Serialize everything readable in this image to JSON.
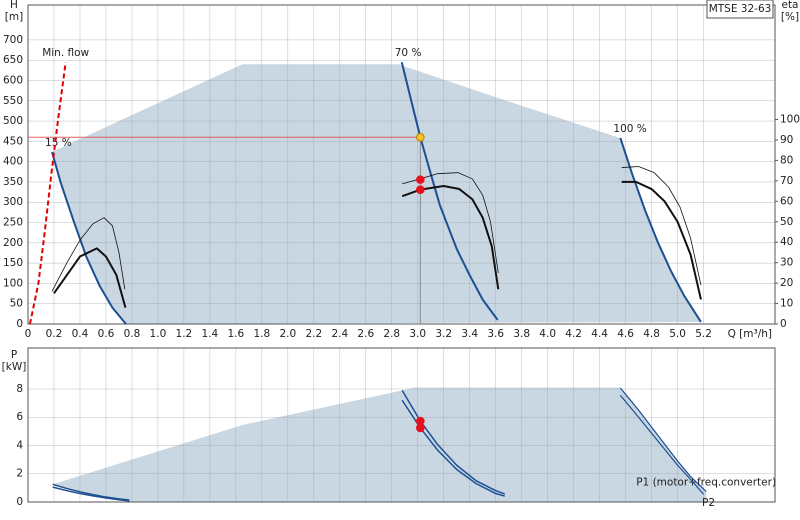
{
  "chart_data": [
    {
      "type": "line",
      "label": "MTSE 32-63",
      "xlabel": "Q [m³/h]",
      "ylabel": [
        "H",
        "[m]"
      ],
      "y2label": [
        "eta",
        "[%]"
      ],
      "xlim": [
        0,
        5.75
      ],
      "xticks": [
        0,
        0.2,
        0.4,
        0.6,
        0.8,
        {
          "value": 1,
          "label": "1.0"
        },
        1.2,
        1.4,
        1.6,
        1.8,
        {
          "value": 2,
          "label": "2.0"
        },
        2.2,
        2.4,
        2.6,
        2.8,
        {
          "value": 3,
          "label": "3.0"
        },
        3.2,
        3.4,
        3.6,
        3.8,
        {
          "value": 4,
          "label": "4.0"
        },
        4.2,
        4.4,
        4.6,
        4.8,
        {
          "value": 5,
          "label": "5.0"
        },
        5.2
      ],
      "ylim": [
        0,
        786
      ],
      "yticks": [
        0,
        50,
        100,
        150,
        200,
        250,
        300,
        350,
        400,
        450,
        500,
        550,
        600,
        650,
        700
      ],
      "y2lim": [
        0,
        156
      ],
      "y2ticks": [
        0,
        10,
        20,
        30,
        40,
        50,
        60,
        70,
        80,
        90,
        100
      ],
      "grid": true,
      "area": {
        "color": "#c9d7e3",
        "x": [
          0.185,
          1.65,
          2.85,
          3.59,
          4.56,
          4.65,
          4.75,
          4.85,
          4.95,
          5.05,
          5.18,
          0.754,
          0.65,
          0.55,
          0.45,
          0.35,
          0.25
        ],
        "values": [
          424,
          640,
          640,
          560,
          458,
          370,
          280,
          200,
          130,
          70,
          5,
          0,
          40,
          95,
          165,
          255,
          350
        ]
      },
      "series": [
        {
          "label": "15 %",
          "label_pos": "start",
          "label_color": "#222",
          "color": "#1d4f91",
          "width": 2,
          "x": [
            0.185,
            0.25,
            0.35,
            0.45,
            0.55,
            0.65,
            0.754
          ],
          "values": [
            424,
            350,
            255,
            165,
            95,
            40,
            0
          ]
        },
        {
          "label": "70 %",
          "label_pos": "start",
          "label_color": "#222",
          "color": "#1d4f91",
          "width": 2,
          "x": [
            2.877,
            2.95,
            3.02,
            3.1,
            3.17,
            3.3,
            3.4,
            3.5,
            3.615
          ],
          "values": [
            645,
            550,
            460,
            370,
            293,
            185,
            120,
            60,
            10
          ]
        },
        {
          "label": "100 %",
          "label_pos": "start",
          "label_color": "#222",
          "color": "#1d4f91",
          "width": 2,
          "x": [
            4.56,
            4.65,
            4.75,
            4.85,
            4.95,
            5.05,
            5.18
          ],
          "values": [
            458,
            370,
            280,
            200,
            130,
            70,
            5
          ]
        },
        {
          "label": "Min. flow",
          "label_pos": "end",
          "label_color": "#e00000",
          "color": "#e00000",
          "width": 2,
          "dash": true,
          "x": [
            0.015,
            0.08,
            0.13,
            0.18,
            0.23,
            0.29
          ],
          "values": [
            0,
            100,
            230,
            370,
            500,
            645
          ]
        },
        {
          "axis": "y2",
          "color": "#111",
          "width": 0.8,
          "x": [
            0.185,
            0.3,
            0.4,
            0.5,
            0.585,
            0.65,
            0.7,
            0.745
          ],
          "values": [
            16,
            30,
            41,
            49,
            52,
            48,
            35,
            17
          ]
        },
        {
          "axis": "y2",
          "color": "#111",
          "width": 2,
          "x": [
            0.2,
            0.3,
            0.4,
            0.53,
            0.6,
            0.68,
            0.75
          ],
          "values": [
            15,
            24,
            33,
            37,
            33,
            24,
            8
          ]
        },
        {
          "axis": "y2",
          "color": "#111",
          "width": 0.8,
          "x": [
            2.88,
            3.02,
            3.15,
            3.31,
            3.42,
            3.5,
            3.56,
            3.62
          ],
          "values": [
            68.5,
            71,
            73.5,
            74,
            71,
            63,
            50,
            25
          ]
        },
        {
          "axis": "y2",
          "color": "#111",
          "width": 2,
          "x": [
            2.88,
            3.02,
            3.2,
            3.32,
            3.42,
            3.5,
            3.57,
            3.62
          ],
          "values": [
            62.5,
            65.7,
            67.5,
            66,
            61,
            52,
            38,
            17
          ]
        },
        {
          "axis": "y2",
          "color": "#111",
          "width": 0.8,
          "x": [
            4.57,
            4.7,
            4.82,
            4.93,
            5.02,
            5.1,
            5.18
          ],
          "values": [
            76.5,
            77,
            74,
            67,
            57,
            42,
            19
          ]
        },
        {
          "axis": "y2",
          "color": "#111",
          "width": 2,
          "x": [
            4.57,
            4.68,
            4.8,
            4.9,
            5.0,
            5.1,
            5.18
          ],
          "values": [
            69.5,
            69.5,
            66,
            60,
            50,
            34,
            12
          ]
        }
      ],
      "points": [
        {
          "x": 3.02,
          "value": 460,
          "color": "#f5c518",
          "guides": true
        },
        {
          "x": 3.02,
          "value": 70.6,
          "axis": "y2",
          "color": "#e8101a"
        },
        {
          "x": 3.02,
          "value": 65.7,
          "axis": "y2",
          "color": "#e8101a"
        }
      ]
    },
    {
      "type": "line",
      "ylabel": [
        "P",
        "[kW]"
      ],
      "xlim": [
        0,
        5.75
      ],
      "xticks": [
        0,
        0.2,
        0.4,
        0.6,
        0.8,
        1,
        1.2,
        1.4,
        1.6,
        1.8,
        2,
        2.2,
        2.4,
        2.6,
        2.8,
        3,
        3.2,
        3.4,
        3.6,
        3.8,
        4,
        4.2,
        4.4,
        4.6,
        4.8,
        5,
        5.2
      ],
      "ylim": [
        0,
        10.9
      ],
      "yticks": [
        0,
        2,
        4,
        6,
        8
      ],
      "grid": true,
      "area": {
        "color": "#c9d7e3",
        "x": [
          0.19,
          1.65,
          2.98,
          4.56,
          4.7,
          4.85,
          5.0,
          5.1,
          5.22,
          5.22,
          0.78,
          0.78,
          0.6,
          0.4
        ],
        "values": [
          1.25,
          5.45,
          8.1,
          8.1,
          6.5,
          4.7,
          2.9,
          1.8,
          0.75,
          0,
          0,
          0.14,
          0.35,
          0.72
        ]
      },
      "series": [
        {
          "color": "#1d4f91",
          "width": 1.5,
          "x": [
            0.19,
            0.3,
            0.4,
            0.5,
            0.6,
            0.7,
            0.78
          ],
          "values": [
            1.25,
            0.95,
            0.72,
            0.52,
            0.35,
            0.22,
            0.14
          ]
        },
        {
          "color": "#1d4f91",
          "width": 1.5,
          "x": [
            0.19,
            0.3,
            0.4,
            0.5,
            0.6,
            0.7,
            0.78
          ],
          "values": [
            1.05,
            0.8,
            0.6,
            0.43,
            0.28,
            0.16,
            0.08
          ]
        },
        {
          "color": "#1d4f91",
          "width": 1.5,
          "x": [
            2.88,
            3.02,
            3.15,
            3.3,
            3.45,
            3.6,
            3.67
          ],
          "values": [
            7.9,
            5.73,
            4.1,
            2.6,
            1.5,
            0.8,
            0.57
          ]
        },
        {
          "color": "#1d4f91",
          "width": 1.5,
          "x": [
            2.88,
            3.02,
            3.15,
            3.3,
            3.45,
            3.6,
            3.67
          ],
          "values": [
            7.2,
            5.24,
            3.7,
            2.3,
            1.3,
            0.6,
            0.42
          ]
        },
        {
          "label": "P1 (motor+freq.converter)",
          "label_pos": "end",
          "label_color": "#1d4f91",
          "color": "#1d4f91",
          "width": 1.2,
          "x": [
            4.56,
            4.7,
            4.85,
            5.0,
            5.1,
            5.22
          ],
          "values": [
            8.07,
            6.5,
            4.7,
            2.9,
            1.8,
            0.75
          ]
        },
        {
          "label": "P2",
          "label_pos": "end-below",
          "label_color": "#1d4f91",
          "color": "#1d4f91",
          "width": 1.2,
          "x": [
            4.56,
            4.7,
            4.85,
            5.0,
            5.1,
            5.2
          ],
          "values": [
            7.55,
            6.0,
            4.3,
            2.6,
            1.6,
            0.55
          ]
        }
      ],
      "points": [
        {
          "x": 3.02,
          "value": 5.73,
          "color": "#e8101a"
        },
        {
          "x": 3.02,
          "value": 5.24,
          "color": "#e8101a"
        }
      ]
    }
  ]
}
